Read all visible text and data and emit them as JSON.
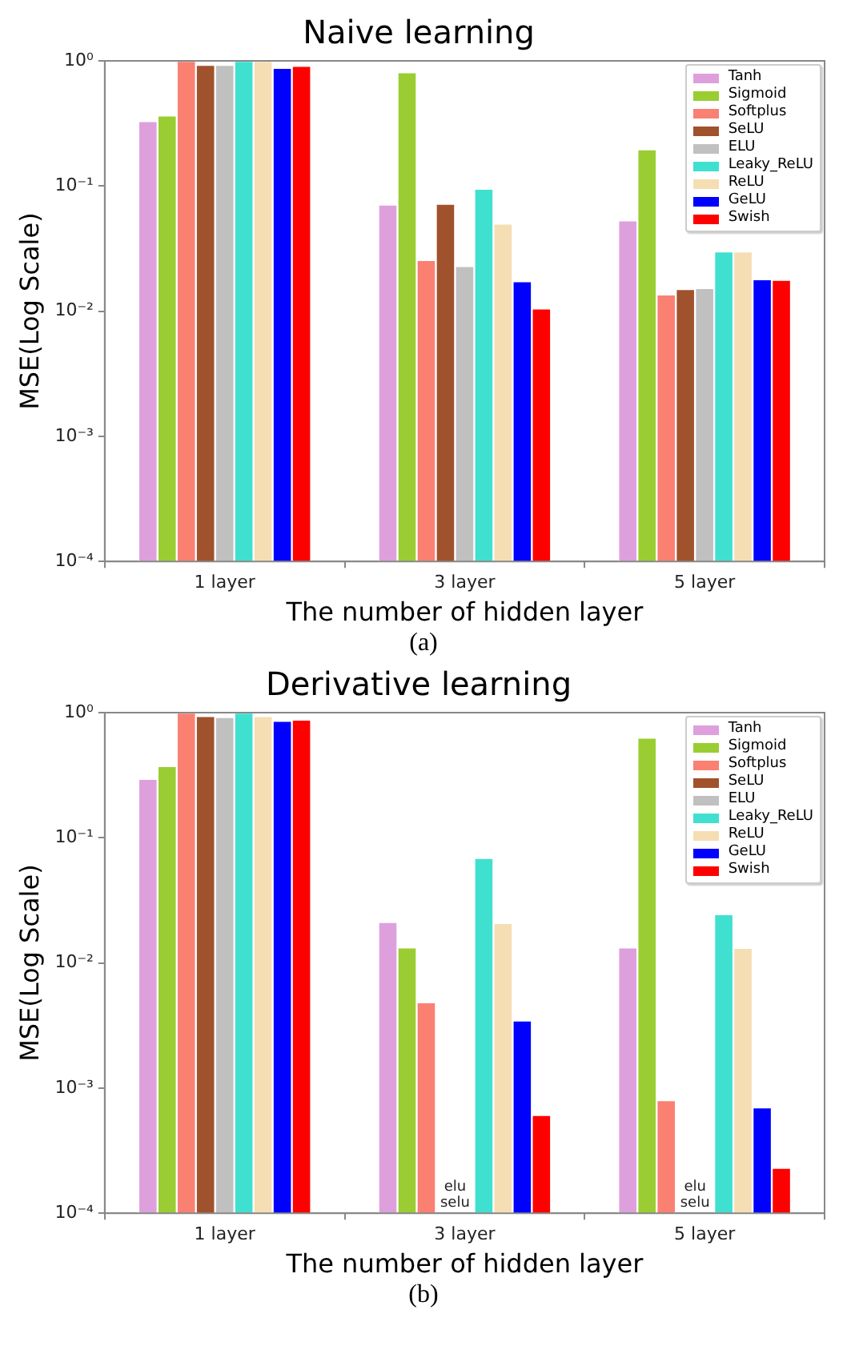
{
  "chart_data": [
    {
      "type": "bar",
      "title": "Naive learning",
      "xlabel": "The number of hidden layer",
      "ylabel": "MSE(Log Scale)",
      "categories": [
        "1 layer",
        "3 layer",
        "5 layer"
      ],
      "series": [
        {
          "name": "Tanh",
          "color": "#dda0dd",
          "values": [
            0.33,
            0.071,
            0.053
          ]
        },
        {
          "name": "Sigmoid",
          "color": "#9acd32",
          "values": [
            0.365,
            0.81,
            0.196
          ]
        },
        {
          "name": "Softplus",
          "color": "#fa8072",
          "values": [
            1.0,
            0.0256,
            0.0136
          ]
        },
        {
          "name": "SeLU",
          "color": "#a0522d",
          "values": [
            0.93,
            0.072,
            0.015
          ]
        },
        {
          "name": "ELU",
          "color": "#c0c0c0",
          "values": [
            0.93,
            0.0229,
            0.0153
          ]
        },
        {
          "name": "Leaky_ReLU",
          "color": "#40e0d0",
          "values": [
            1.0,
            0.095,
            0.03
          ]
        },
        {
          "name": "ReLU",
          "color": "#f5deb3",
          "values": [
            1.0,
            0.05,
            0.03
          ]
        },
        {
          "name": "GeLU",
          "color": "#0000ff",
          "values": [
            0.88,
            0.0173,
            0.018
          ]
        },
        {
          "name": "Swish",
          "color": "#ff0000",
          "values": [
            0.91,
            0.0105,
            0.0178
          ]
        }
      ],
      "log": true,
      "ylim": [
        0.0001,
        1
      ],
      "yticks": [
        {
          "value": 0.0001,
          "label": "10⁻⁴"
        },
        {
          "value": 0.001,
          "label": "10⁻³"
        },
        {
          "value": 0.01,
          "label": "10⁻²"
        },
        {
          "value": 0.1,
          "label": "10⁻¹"
        },
        {
          "value": 1,
          "label": "10⁰"
        }
      ],
      "legend": "top right",
      "annotations": [
        "(a)"
      ]
    },
    {
      "type": "bar",
      "title": "Derivative learning",
      "xlabel": "The number of hidden layer",
      "ylabel": "MSE(Log Scale)",
      "categories": [
        "1 layer",
        "3 layer",
        "5 layer"
      ],
      "series": [
        {
          "name": "Tanh",
          "color": "#dda0dd",
          "values": [
            0.295,
            0.0212,
            0.0133
          ]
        },
        {
          "name": "Sigmoid",
          "color": "#9acd32",
          "values": [
            0.374,
            0.0133,
            0.63
          ]
        },
        {
          "name": "Softplus",
          "color": "#fa8072",
          "values": [
            1.0,
            0.00484,
            0.0008
          ]
        },
        {
          "name": "SeLU",
          "color": "#a0522d",
          "values": [
            0.94,
            null,
            null
          ]
        },
        {
          "name": "ELU",
          "color": "#c0c0c0",
          "values": [
            0.92,
            null,
            null
          ]
        },
        {
          "name": "Leaky_ReLU",
          "color": "#40e0d0",
          "values": [
            1.0,
            0.069,
            0.0245
          ]
        },
        {
          "name": "ReLU",
          "color": "#f5deb3",
          "values": [
            0.94,
            0.0208,
            0.0132
          ]
        },
        {
          "name": "GeLU",
          "color": "#0000ff",
          "values": [
            0.86,
            0.00347,
            0.0007
          ]
        },
        {
          "name": "Swish",
          "color": "#ff0000",
          "values": [
            0.88,
            0.00061,
            0.00023
          ]
        }
      ],
      "log": true,
      "ylim": [
        0.0001,
        1
      ],
      "yticks": [
        {
          "value": 0.0001,
          "label": "10⁻⁴"
        },
        {
          "value": 0.001,
          "label": "10⁻³"
        },
        {
          "value": 0.01,
          "label": "10⁻²"
        },
        {
          "value": 0.1,
          "label": "10⁻¹"
        },
        {
          "value": 1,
          "label": "10⁰"
        }
      ],
      "legend": "top right",
      "annotations": [
        "elu\nselu",
        "elu\nselu",
        "(b)"
      ]
    }
  ]
}
